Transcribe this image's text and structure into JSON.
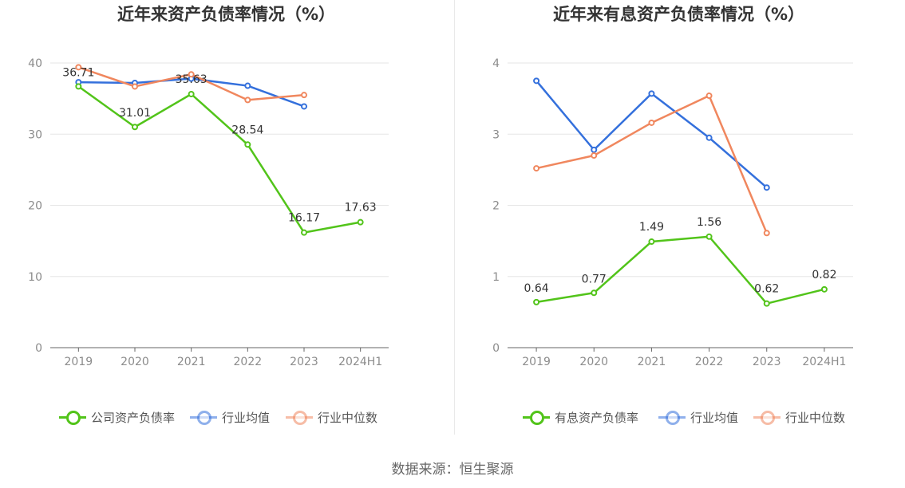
{
  "source": "数据来源：恒生聚源",
  "colors": {
    "company": "#52c41a",
    "avg": "#3470dc",
    "median": "#f0875e",
    "grid": "#e6e6e6",
    "axis": "#666666"
  },
  "chart_data": [
    {
      "type": "line",
      "title": "近年来资产负债率情况（%）",
      "categories": [
        "2019",
        "2020",
        "2021",
        "2022",
        "2023",
        "2024H1"
      ],
      "ylim": [
        0,
        40
      ],
      "yticks": [
        0,
        10,
        20,
        30,
        40
      ],
      "grid": true,
      "legend_position": "bottom",
      "series": [
        {
          "name": "公司资产负债率",
          "color": "#52c41a",
          "values": [
            36.71,
            31.01,
            35.63,
            28.54,
            16.17,
            17.63
          ],
          "labels": [
            "36.71",
            "31.01",
            "35.63",
            "28.54",
            "16.17",
            "17.63"
          ]
        },
        {
          "name": "行业均值",
          "color": "#3470dc",
          "values": [
            37.3,
            37.2,
            37.8,
            36.8,
            33.9,
            null
          ]
        },
        {
          "name": "行业中位数",
          "color": "#f0875e",
          "values": [
            39.4,
            36.7,
            38.4,
            34.8,
            35.5,
            null
          ]
        }
      ]
    },
    {
      "type": "line",
      "title": "近年来有息资产负债率情况（%）",
      "categories": [
        "2019",
        "2020",
        "2021",
        "2022",
        "2023",
        "2024H1"
      ],
      "ylim": [
        0,
        4
      ],
      "yticks": [
        0,
        1,
        2,
        3,
        4
      ],
      "grid": true,
      "legend_position": "bottom",
      "series": [
        {
          "name": "有息资产负债率",
          "color": "#52c41a",
          "values": [
            0.64,
            0.77,
            1.49,
            1.56,
            0.62,
            0.82
          ],
          "labels": [
            "0.64",
            "0.77",
            "1.49",
            "1.56",
            "0.62",
            "0.82"
          ]
        },
        {
          "name": "行业均值",
          "color": "#3470dc",
          "values": [
            3.75,
            2.78,
            3.57,
            2.95,
            2.25,
            null
          ]
        },
        {
          "name": "行业中位数",
          "color": "#f0875e",
          "values": [
            2.52,
            2.7,
            3.16,
            3.54,
            1.61,
            null
          ]
        }
      ]
    }
  ]
}
